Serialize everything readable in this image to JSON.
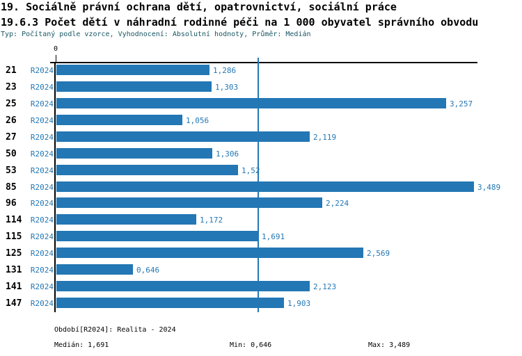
{
  "header": {
    "title_line1": "19. Sociálně právní ochrana dětí, opatrovnictví, sociální práce",
    "title_line2": "19.6.3 Počet dětí v náhradní rodinné péči na 1 000 obyvatel správního obvodu",
    "meta": "Typ: Počítaný podle vzorce, Vyhodnocení: Absolutní hodnoty, Průměr: Medián"
  },
  "chart_data": {
    "type": "bar",
    "orientation": "horizontal",
    "title": "19.6.3 Počet dětí v náhradní rodinné péči na 1 000 obyvatel správního obvodu",
    "categories": [
      "21",
      "23",
      "25",
      "26",
      "27",
      "50",
      "53",
      "85",
      "96",
      "114",
      "115",
      "125",
      "131",
      "141",
      "147"
    ],
    "series_label": "R2024",
    "values": [
      1.286,
      1.303,
      3.257,
      1.056,
      2.119,
      1.306,
      1.52,
      3.489,
      2.224,
      1.172,
      1.691,
      2.569,
      0.646,
      2.123,
      1.903
    ],
    "value_labels": [
      "1,286",
      "1,303",
      "3,257",
      "1,056",
      "2,119",
      "1,306",
      "1,52",
      "3,489",
      "2,224",
      "1,172",
      "1,691",
      "2,569",
      "0,646",
      "2,123",
      "1,903"
    ],
    "x_zero_label": "0",
    "xlim": [
      0,
      3.52
    ],
    "median": 1.691,
    "grid": false,
    "legend": "none",
    "bar_color": "#2377b4",
    "median_line_color": "#2377b4",
    "label_color": "#2377b4"
  },
  "footer": {
    "period": "Období[R2024]: Realita - 2024",
    "median": "Medián: 1,691",
    "min": "Min: 0,646",
    "max": "Max: 3,489"
  }
}
